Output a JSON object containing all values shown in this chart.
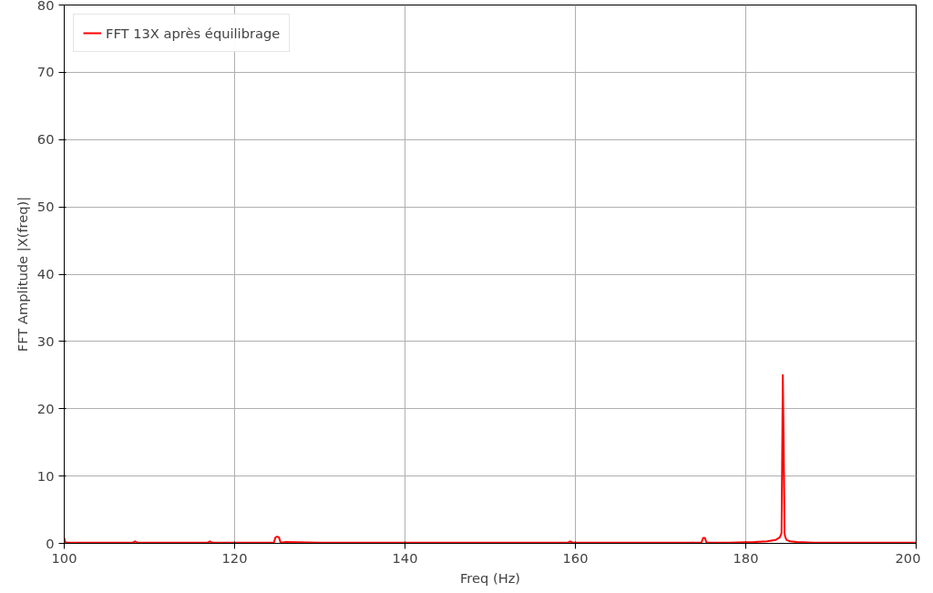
{
  "chart_data": {
    "type": "line",
    "xlabel": "Freq (Hz)",
    "ylabel": "FFT Amplitude |X(freq)|",
    "x": [
      100,
      100.1,
      100.3,
      105,
      108,
      108.3,
      108.6,
      112,
      116.8,
      117.1,
      117.4,
      124.6,
      124.8,
      125,
      125.2,
      125.4,
      126,
      130,
      135,
      140,
      145,
      150,
      155,
      159.1,
      159.4,
      159.7,
      165,
      170,
      174.8,
      175,
      175.2,
      175.4,
      178,
      181,
      182.5,
      183.5,
      184,
      184.2,
      184.35,
      184.45,
      184.55,
      184.65,
      184.8,
      185.2,
      186,
      188,
      192,
      196,
      200
    ],
    "series": [
      {
        "name": "FFT 13X après équilibrage",
        "color": "#ff0000",
        "values": [
          0.8,
          0.2,
          0.1,
          0.1,
          0.1,
          0.3,
          0.1,
          0.1,
          0.1,
          0.3,
          0.1,
          0.1,
          0.9,
          1.0,
          0.9,
          0.1,
          0.2,
          0.1,
          0.1,
          0.1,
          0.1,
          0.1,
          0.1,
          0.1,
          0.3,
          0.1,
          0.1,
          0.1,
          0.1,
          0.8,
          0.8,
          0.1,
          0.1,
          0.2,
          0.3,
          0.5,
          0.9,
          1.5,
          25,
          15,
          1.5,
          0.9,
          0.5,
          0.3,
          0.2,
          0.1,
          0.1,
          0.1,
          0.1
        ]
      }
    ],
    "xlim": [
      100,
      200
    ],
    "ylim": [
      0,
      80
    ],
    "xticks": [
      100,
      120,
      140,
      160,
      180,
      200
    ],
    "yticks": [
      0,
      10,
      20,
      30,
      40,
      50,
      60,
      70,
      80
    ],
    "grid": true,
    "legend": "top left"
  }
}
